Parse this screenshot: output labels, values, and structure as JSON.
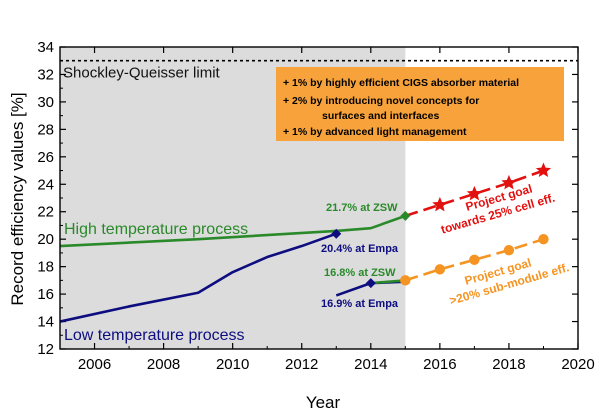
{
  "chart_data": {
    "type": "line",
    "xlabel": "Year",
    "ylabel": "Record efficiency values [%]",
    "xlim": [
      2005,
      2020
    ],
    "ylim": [
      12,
      34
    ],
    "x_ticks": [
      "2006",
      "2008",
      "2010",
      "2012",
      "2014",
      "2016",
      "2018",
      "2020"
    ],
    "y_ticks": [
      "12",
      "14",
      "16",
      "18",
      "20",
      "22",
      "24",
      "26",
      "28",
      "30",
      "32",
      "34"
    ],
    "grid": false,
    "shaded_region": {
      "from": 2005,
      "to": 2015,
      "color": "#dcdcdc"
    },
    "reference_line": {
      "label": "Shockley-Queisser limit",
      "y": 33
    },
    "callout": {
      "lines": [
        "+ 1% by highly efficient CIGS absorber material",
        "+ 2% by introducing novel concepts for",
        "surfaces and interfaces",
        "+ 1% by advanced light management"
      ],
      "color": "#f7a23a"
    },
    "series": [
      {
        "name": "High temperature process",
        "color": "#2a8a2a",
        "style": "solid",
        "x": [
          2005,
          2009,
          2013,
          2014,
          2015
        ],
        "y": [
          19.5,
          20.0,
          20.6,
          20.8,
          21.7
        ],
        "end_marker": "diamond"
      },
      {
        "name": "Low temperature process",
        "color": "#0d0d80",
        "style": "solid",
        "x": [
          2005,
          2007,
          2009,
          2010,
          2011,
          2012,
          2013
        ],
        "y": [
          14.0,
          15.1,
          16.1,
          17.6,
          18.7,
          19.5,
          20.4
        ],
        "end_marker": "diamond"
      },
      {
        "name": "",
        "color": "#0d0d80",
        "style": "solid",
        "x": [
          2013,
          2014,
          2015
        ],
        "y": [
          15.9,
          16.8,
          16.9
        ],
        "markers_at": [
          2014
        ],
        "marker": "diamond"
      },
      {
        "name": "",
        "color": "#2a8a2a",
        "style": "solid",
        "x": [
          2014,
          2015
        ],
        "y": [
          16.8,
          17.0
        ]
      },
      {
        "name": "",
        "color": "#e31010",
        "style": "dashed",
        "x": [
          2015,
          2016,
          2017,
          2018,
          2019
        ],
        "y": [
          21.7,
          22.5,
          23.3,
          24.1,
          25.0
        ],
        "markers_at": [
          2016,
          2017,
          2018,
          2019
        ],
        "marker": "star"
      },
      {
        "name": "",
        "color": "#f59422",
        "style": "dashed",
        "x": [
          2015,
          2016,
          2017,
          2018,
          2019
        ],
        "y": [
          17.0,
          17.8,
          18.5,
          19.2,
          20.0
        ],
        "marker": "circle"
      }
    ],
    "annotations": [
      {
        "text": "High temperature process",
        "color": "#2a8a2a"
      },
      {
        "text": "Low temperature process",
        "color": "#0d0d80"
      },
      {
        "text": "21.7% at ZSW",
        "color": "#2a8a2a"
      },
      {
        "text": "20.4% at Empa",
        "color": "#0d0d80"
      },
      {
        "text": "16.8% at ZSW",
        "color": "#2a8a2a"
      },
      {
        "text": "16.9% at Empa",
        "color": "#0d0d80"
      },
      {
        "text": "Project goal",
        "color": "#e31010"
      },
      {
        "text": "towards 25% cell eff.",
        "color": "#e31010"
      },
      {
        "text": "Project goal",
        "color": "#f59422"
      },
      {
        "text": ">20% sub-module eff.",
        "color": "#f59422"
      }
    ]
  }
}
